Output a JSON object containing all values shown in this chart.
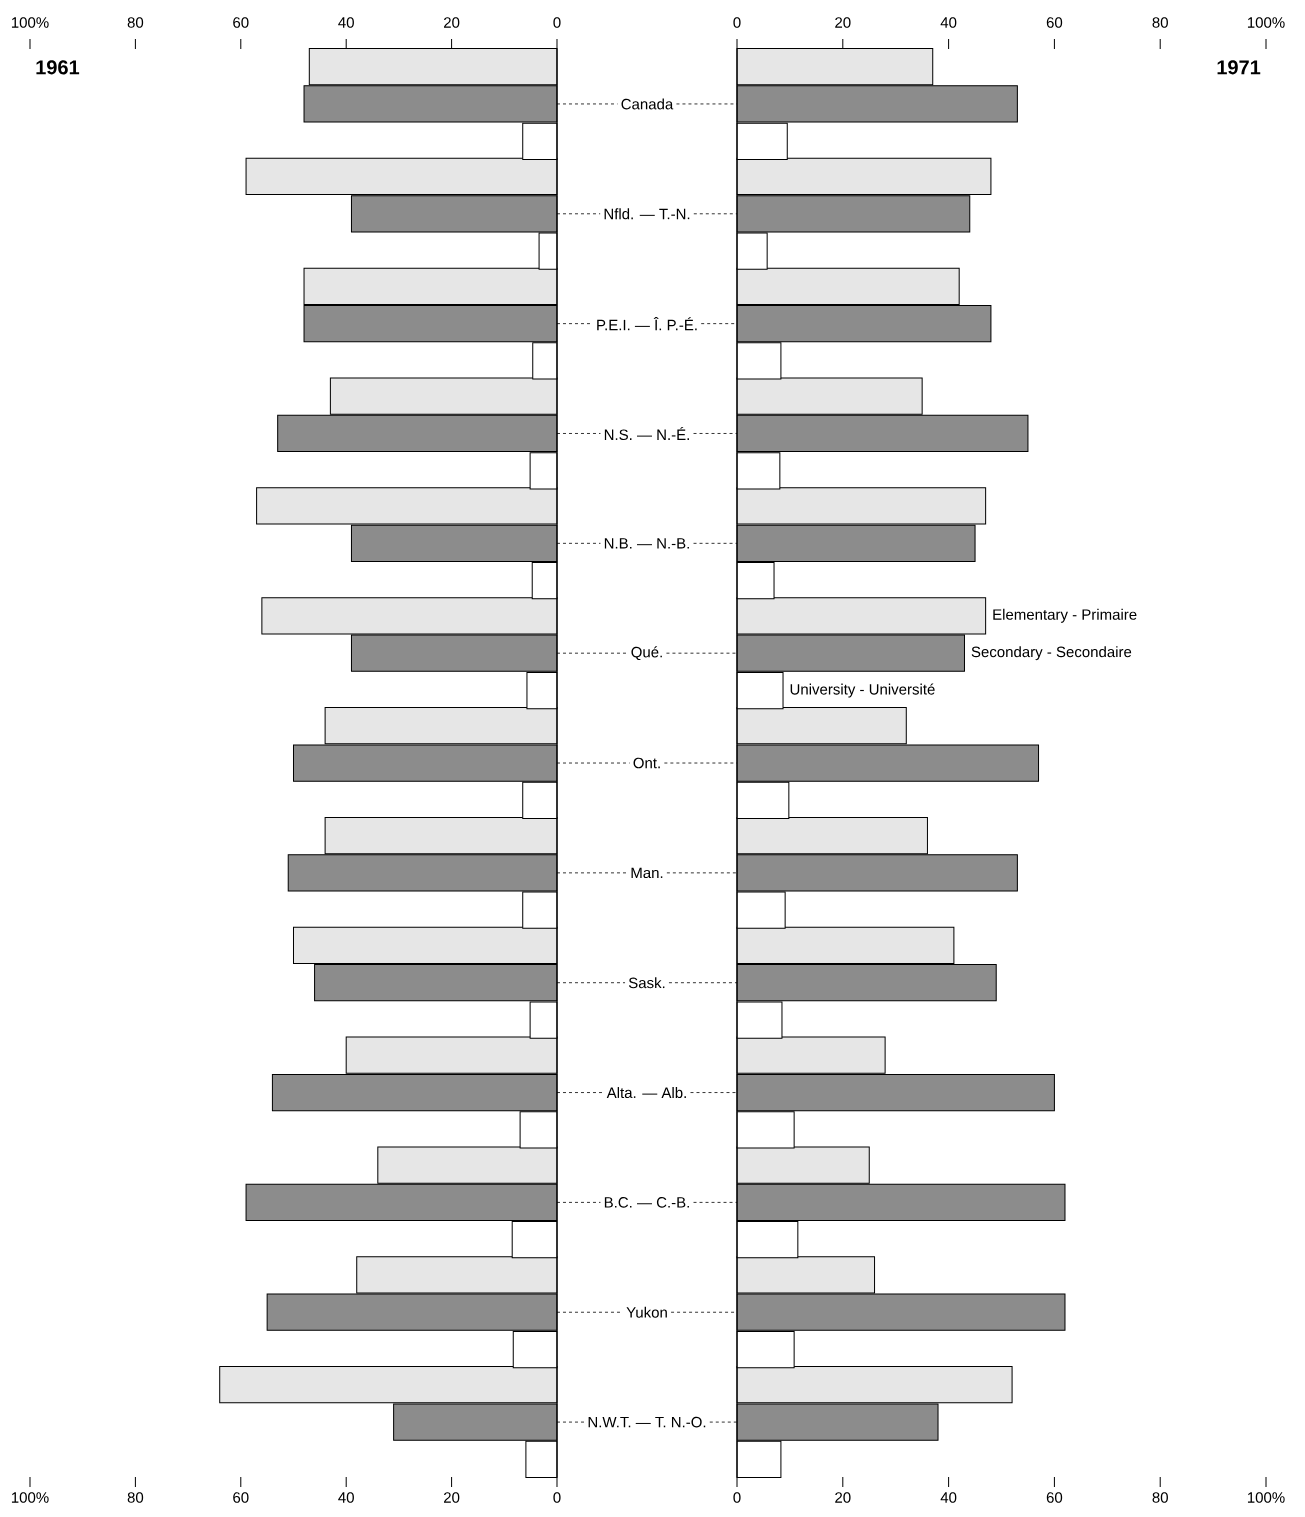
{
  "chart_data": [
    {
      "type": "bar",
      "orientation": "horizontal",
      "title": "1961",
      "categories": [
        "Canada",
        "Nfld. — T.-N.",
        "P.E.I. — Î. P.-É.",
        "N.S. — N.-É.",
        "N.B. — N.-B.",
        "Qué.",
        "Ont.",
        "Man.",
        "Sask.",
        "Alta. — Alb.",
        "B.C. — C.-B.",
        "Yukon",
        "N.W.T. — T. N.-O."
      ],
      "series": [
        {
          "color": "#e6e6e6",
          "values": [
            47,
            59,
            48,
            43,
            57,
            56,
            44,
            44,
            50,
            40,
            34,
            38,
            64
          ]
        },
        {
          "color": "#8c8c8c",
          "values": [
            48,
            39,
            48,
            53,
            39,
            39,
            50,
            51,
            46,
            54,
            59,
            55,
            31
          ]
        },
        {
          "color": "#ffffff",
          "values": [
            6.5,
            3.4,
            4.6,
            5.1,
            4.7,
            5.7,
            6.5,
            6.5,
            5.1,
            7,
            8.5,
            8.3,
            5.9
          ]
        }
      ],
      "xlim": [
        100,
        0
      ],
      "xticks": [
        0,
        20,
        40,
        60,
        80,
        {
          "value": 100,
          "label": "100%"
        }
      ],
      "x2lim": [
        100,
        0
      ],
      "x2ticks": [
        0,
        20,
        40,
        60,
        80,
        {
          "value": 100,
          "label": "100%"
        }
      ]
    },
    {
      "type": "bar",
      "orientation": "horizontal",
      "title": "1971",
      "series": [
        {
          "name": "Elementary - Primaire",
          "color": "#e6e6e6",
          "values": [
            37,
            48,
            42,
            35,
            47,
            47,
            32,
            36,
            41,
            28,
            25,
            26,
            52
          ]
        },
        {
          "name": "Secondary - Secondaire",
          "color": "#8c8c8c",
          "values": [
            53,
            44,
            48,
            55,
            45,
            43,
            57,
            53,
            49,
            60,
            62,
            62,
            38
          ]
        },
        {
          "name": "University - Université",
          "color": "#ffffff",
          "values": [
            9.5,
            5.7,
            8.3,
            8.1,
            7,
            8.7,
            9.8,
            9.1,
            8.5,
            10.8,
            11.5,
            10.8,
            8.3
          ]
        }
      ],
      "xlim": [
        0,
        100
      ],
      "xticks": [
        0,
        20,
        40,
        60,
        80,
        {
          "value": 100,
          "label": "100%"
        }
      ],
      "x2lim": [
        0,
        100
      ],
      "x2ticks": [
        0,
        20,
        40,
        60,
        80,
        {
          "value": 100,
          "label": "100%"
        }
      ],
      "tick_labels": "x"
    }
  ]
}
